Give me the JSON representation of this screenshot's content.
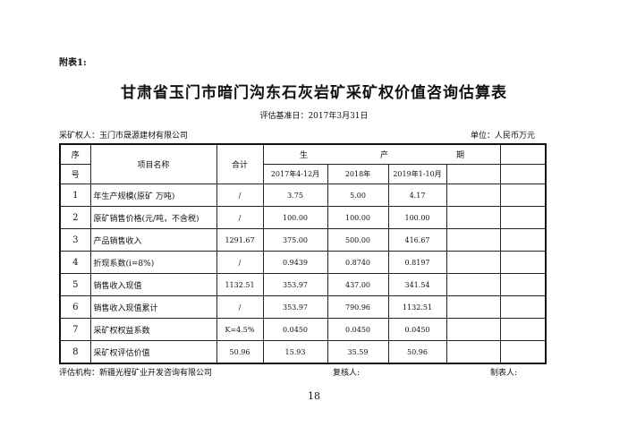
{
  "annex_label": "附表1:",
  "title": "甘肃省玉门市暗门沟东石灰岩矿采矿权价值咨询估算表",
  "base_date": "评估基准日：2017年3月31日",
  "owner": "采矿权人：玉门市晟源建材有限公司",
  "unit": "单位：人民币万元",
  "header": {
    "seq_top": "序",
    "seq_bottom": "号",
    "name": "项目名称",
    "total": "合计",
    "period_chars": [
      "生",
      "产",
      "期"
    ],
    "periods": [
      "2017年4-12月",
      "2018年",
      "2019年1-10月"
    ]
  },
  "rows": [
    {
      "seq": "1",
      "name": "年生产规模(原矿 万吨)",
      "total": "/",
      "values": [
        "3.75",
        "5.00",
        "4.17"
      ]
    },
    {
      "seq": "2",
      "name": "原矿销售价格(元/吨，不含税)",
      "total": "/",
      "values": [
        "100.00",
        "100.00",
        "100.00"
      ]
    },
    {
      "seq": "3",
      "name": "产品销售收入",
      "total": "1291.67",
      "values": [
        "375.00",
        "500.00",
        "416.67"
      ]
    },
    {
      "seq": "4",
      "name": "折现系数(i=8%)",
      "total": "/",
      "values": [
        "0.9439",
        "0.8740",
        "0.8197"
      ]
    },
    {
      "seq": "5",
      "name": "销售收入现值",
      "total": "1132.51",
      "values": [
        "353.97",
        "437.00",
        "341.54"
      ]
    },
    {
      "seq": "6",
      "name": "销售收入现值累计",
      "total": "/",
      "values": [
        "353.97",
        "790.96",
        "1132.51"
      ]
    },
    {
      "seq": "7",
      "name": "采矿权权益系数",
      "total": "K=4.5%",
      "values": [
        "0.0450",
        "0.0450",
        "0.0450"
      ]
    },
    {
      "seq": "8",
      "name": "采矿权评估价值",
      "total": "50.96",
      "values": [
        "15.93",
        "35.59",
        "50.96"
      ]
    }
  ],
  "footer": {
    "org": "评估机构：新疆光程矿业开发咨询有限公司",
    "reviewer": "复核人:",
    "preparer": "制表人:"
  },
  "page_number": "18"
}
